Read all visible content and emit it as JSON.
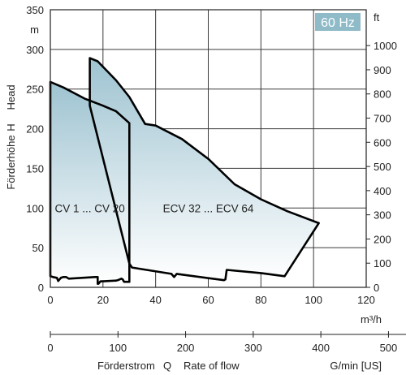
{
  "chart_data": {
    "type": "area",
    "badge": "60 Hz",
    "colors": {
      "badge_bg": "#8fbac8",
      "badge_text": "#ffffff",
      "fill_top": "#9ec3d1",
      "fill_bottom": "#ffffff",
      "curve": "#000000",
      "grid": "#3a3a3a"
    },
    "grid": true,
    "y_left": {
      "unit": "m",
      "label_de": "Förderhöhe",
      "label_h": "H",
      "label_en": "Head",
      "min": 0,
      "max": 350,
      "ticks": [
        0,
        50,
        100,
        150,
        200,
        250,
        300,
        350
      ]
    },
    "y_right": {
      "unit": "ft",
      "min": 0,
      "max": 1148.3,
      "ticks": [
        0,
        100,
        200,
        300,
        400,
        500,
        600,
        700,
        800,
        900,
        1000
      ]
    },
    "x_top": {
      "unit": "m³/h",
      "min": 0,
      "max": 120,
      "ticks": [
        0,
        20,
        40,
        60,
        80,
        100,
        120
      ]
    },
    "x_bottom": {
      "unit": "G/min [US]",
      "min": 0,
      "max": 528.3,
      "ticks": [
        0,
        100,
        200,
        300,
        400,
        500
      ]
    },
    "x_caption": {
      "de": "Förderstrom",
      "q": "Q",
      "en": "Rate of flow"
    },
    "series": [
      {
        "name": "CV 1 ... CV 20",
        "label_pos": [
          15,
          100
        ],
        "outline": [
          [
            0,
            14
          ],
          [
            0,
            259
          ],
          [
            5,
            252
          ],
          [
            13,
            238
          ],
          [
            20,
            229
          ],
          [
            25,
            222
          ],
          [
            30,
            207
          ],
          [
            30,
            7
          ],
          [
            28,
            7
          ],
          [
            27.5,
            10
          ],
          [
            27,
            11
          ],
          [
            26,
            9.5
          ],
          [
            25,
            8.5
          ],
          [
            19,
            7.5
          ],
          [
            18.3,
            4.5
          ],
          [
            18,
            4.5
          ],
          [
            18,
            13
          ],
          [
            17,
            13
          ],
          [
            7,
            11
          ],
          [
            6,
            13
          ],
          [
            5,
            13
          ],
          [
            4,
            12
          ],
          [
            3,
            8
          ],
          [
            2.5,
            12
          ],
          [
            1,
            13
          ],
          [
            0,
            14
          ]
        ]
      },
      {
        "name": "ECV 32 ... ECV 64",
        "label_pos": [
          60,
          100
        ],
        "outline": [
          [
            15,
            229
          ],
          [
            15,
            289
          ],
          [
            18,
            285
          ],
          [
            25,
            261
          ],
          [
            30,
            240
          ],
          [
            36,
            206
          ],
          [
            40,
            204
          ],
          [
            50,
            187
          ],
          [
            60,
            162
          ],
          [
            70,
            130
          ],
          [
            80,
            111
          ],
          [
            90,
            96
          ],
          [
            102,
            81
          ],
          [
            89,
            14
          ],
          [
            80,
            18
          ],
          [
            67,
            22
          ],
          [
            66.5,
            10
          ],
          [
            66,
            9
          ],
          [
            48,
            17
          ],
          [
            47,
            13
          ],
          [
            46,
            17
          ],
          [
            31,
            25
          ],
          [
            30,
            30
          ]
        ]
      }
    ]
  }
}
